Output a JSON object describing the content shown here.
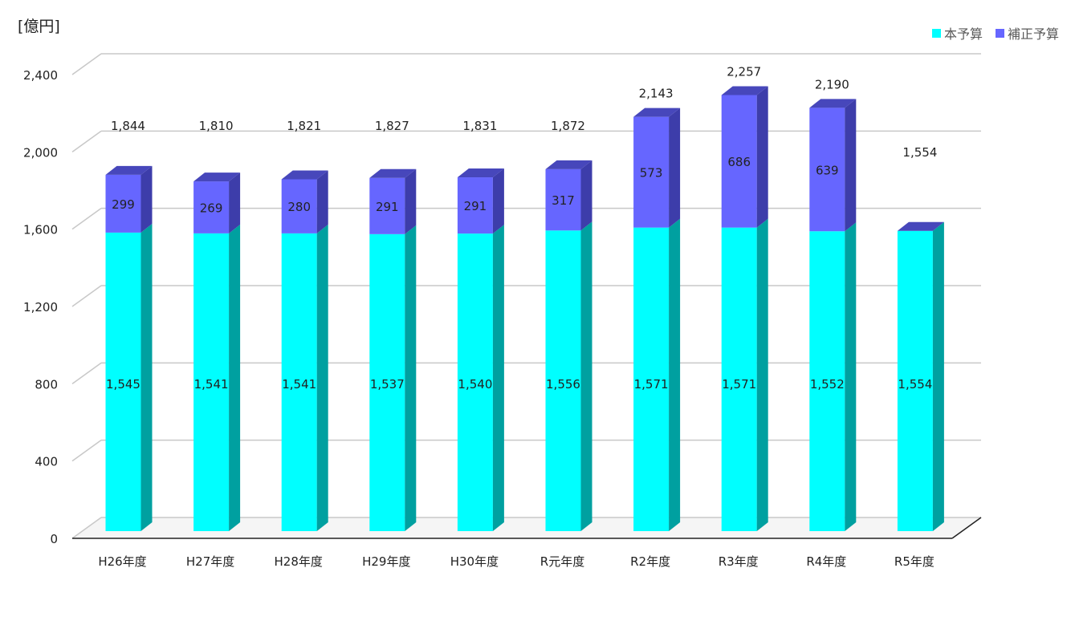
{
  "chart_data": {
    "type": "bar",
    "stacked": true,
    "unit_label": "[億円]",
    "categories": [
      "H26年度",
      "H27年度",
      "H28年度",
      "H29年度",
      "H30年度",
      "R元年度",
      "R2年度",
      "R3年度",
      "R4年度",
      "R5年度"
    ],
    "series": [
      {
        "name": "本予算",
        "values": [
          1545,
          1541,
          1541,
          1537,
          1540,
          1556,
          1571,
          1571,
          1552,
          1554
        ],
        "color": "#00ffff",
        "side_color": "#00a0a0",
        "top_color": "#00d8d8"
      },
      {
        "name": "補正予算",
        "values": [
          299,
          269,
          280,
          291,
          291,
          317,
          573,
          686,
          639,
          null
        ],
        "color": "#6666ff",
        "side_color": "#3d3daa",
        "top_color": "#4747bb"
      }
    ],
    "totals": [
      1844,
      1810,
      1821,
      1827,
      1831,
      1872,
      2143,
      2257,
      2190,
      1554
    ],
    "value_labels": {
      "base": [
        "1,545",
        "1,541",
        "1,541",
        "1,537",
        "1,540",
        "1,556",
        "1,571",
        "1,571",
        "1,552",
        "1,554"
      ],
      "supplement": [
        "299",
        "269",
        "280",
        "291",
        "291",
        "317",
        "573",
        "686",
        "639",
        ""
      ],
      "total": [
        "1,844",
        "1,810",
        "1,821",
        "1,827",
        "1,831",
        "1,872",
        "2,143",
        "2,257",
        "2,190",
        "1,554"
      ]
    },
    "y_ticks": [
      0,
      400,
      800,
      1200,
      1600,
      2000,
      2400
    ],
    "y_tick_labels": [
      "0",
      "400",
      "800",
      "1,200",
      "1,600",
      "2,000",
      "2,400"
    ],
    "ylim": [
      0,
      2400
    ],
    "grid": true,
    "legend_position": "top-right"
  },
  "legend": {
    "base_label": "本予算",
    "supplement_label": "補正予算"
  }
}
